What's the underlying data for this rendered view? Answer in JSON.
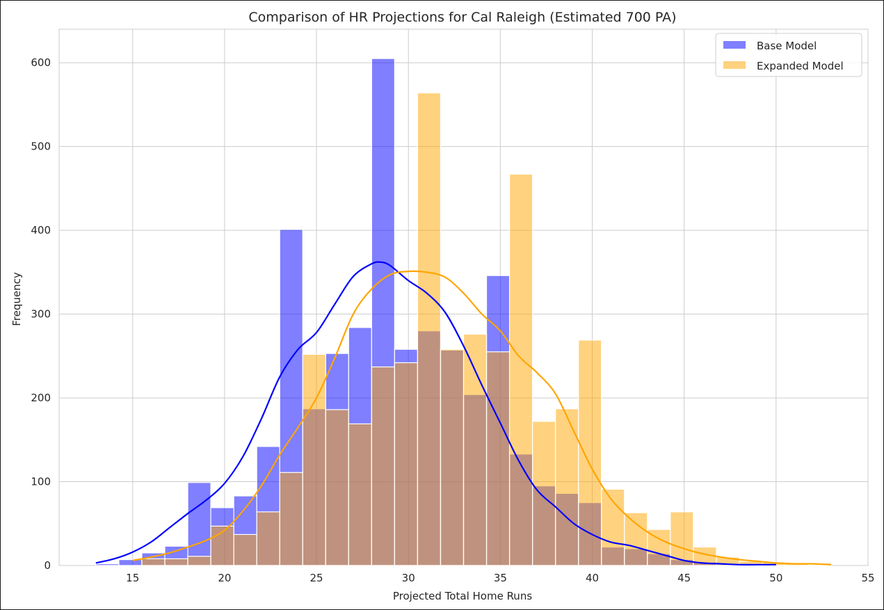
{
  "chart_data": {
    "type": "histogram",
    "title": "Comparison of HR Projections for Cal Raleigh (Estimated 700 PA)",
    "xlabel": "Projected Total Home Runs",
    "ylabel": "Frequency",
    "xlim": [
      11.0,
      55.0
    ],
    "ylim": [
      0,
      640
    ],
    "xticks": [
      15,
      20,
      25,
      30,
      35,
      40,
      45,
      50,
      55
    ],
    "yticks": [
      0,
      100,
      200,
      300,
      400,
      500,
      600
    ],
    "grid": true,
    "legend_position": "top-right",
    "bin_edges": [
      13.0,
      14.25,
      15.5,
      16.75,
      18.0,
      19.25,
      20.5,
      21.75,
      23.0,
      24.25,
      25.5,
      26.75,
      28.0,
      29.25,
      30.5,
      31.75,
      33.0,
      34.25,
      35.5,
      36.75,
      38.0,
      39.25,
      40.5,
      41.75,
      43.0,
      44.25,
      45.5,
      46.75,
      48.0,
      49.25,
      50.5,
      51.75,
      53.0
    ],
    "series": [
      {
        "name": "Base Model",
        "color": "#0000ff",
        "fill_opacity": 0.5,
        "counts": [
          2,
          7,
          15,
          23,
          99,
          69,
          83,
          142,
          401,
          187,
          253,
          284,
          605,
          258,
          280,
          257,
          204,
          346,
          133,
          95,
          86,
          75,
          22,
          20,
          14,
          7,
          4,
          0,
          0,
          0,
          0,
          0
        ],
        "kde_x": [
          13,
          14,
          15,
          16,
          17,
          18,
          19,
          20,
          21,
          22,
          23,
          24,
          25,
          26,
          27,
          28,
          28.5,
          29,
          30,
          31,
          32,
          33,
          34,
          35,
          36,
          37,
          38,
          39,
          40,
          41,
          42,
          43,
          44,
          45,
          46,
          47,
          48,
          49,
          50
        ],
        "kde_y": [
          3,
          8,
          16,
          28,
          45,
          62,
          78,
          98,
          130,
          175,
          225,
          258,
          278,
          312,
          345,
          360,
          362,
          358,
          340,
          325,
          302,
          262,
          215,
          170,
          125,
          90,
          70,
          50,
          37,
          28,
          24,
          18,
          12,
          6,
          3,
          2,
          1,
          1,
          1
        ]
      },
      {
        "name": "Expanded Model",
        "color": "#ffa500",
        "fill_opacity": 0.5,
        "counts": [
          0,
          0,
          8,
          8,
          11,
          47,
          37,
          64,
          111,
          252,
          186,
          169,
          237,
          242,
          564,
          258,
          276,
          255,
          467,
          172,
          187,
          269,
          91,
          63,
          43,
          64,
          22,
          10,
          5,
          4,
          2,
          1
        ],
        "kde_x": [
          15,
          16,
          17,
          18,
          19,
          20,
          21,
          22,
          23,
          24,
          25,
          26,
          27,
          28,
          29,
          30,
          31,
          32,
          33,
          34,
          35,
          36,
          37,
          38,
          39,
          40,
          41,
          42,
          43,
          44,
          45,
          46,
          47,
          48,
          49,
          50,
          51,
          52,
          53
        ],
        "kde_y": [
          6,
          10,
          15,
          22,
          30,
          42,
          65,
          95,
          132,
          165,
          200,
          248,
          300,
          330,
          347,
          351,
          350,
          344,
          325,
          300,
          280,
          250,
          230,
          205,
          160,
          115,
          80,
          57,
          40,
          28,
          20,
          14,
          10,
          7,
          5,
          3,
          2,
          2,
          1
        ]
      }
    ]
  }
}
